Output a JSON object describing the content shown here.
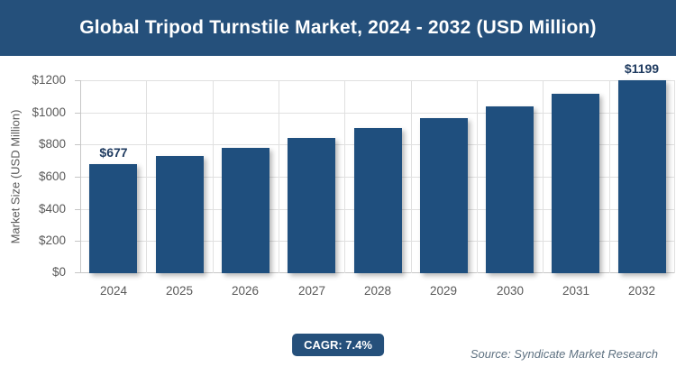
{
  "banner": {
    "title": "Global Tripod Turnstile Market, 2024 - 2032 (USD Million)"
  },
  "chart_data": {
    "type": "bar",
    "title": "Global Tripod Turnstile Market, 2024 - 2032 (USD Million)",
    "categories": [
      "2024",
      "2025",
      "2026",
      "2027",
      "2028",
      "2029",
      "2030",
      "2031",
      "2032"
    ],
    "values": [
      677,
      727,
      781,
      839,
      901,
      967,
      1039,
      1116,
      1199
    ],
    "bar_labels": [
      "$677",
      "",
      "",
      "",
      "",
      "",
      "",
      "",
      "$1199"
    ],
    "xlabel": "",
    "ylabel": "Market Size (USD Million)",
    "ylim": [
      0,
      1200
    ],
    "yticks": [
      0,
      200,
      400,
      600,
      800,
      1000,
      1200
    ],
    "ytick_labels": [
      "$0",
      "$200",
      "$400",
      "$600",
      "$800",
      "$1000",
      "$1200"
    ],
    "grid": true,
    "legend": false,
    "cagr_percent": 7.4
  },
  "footer": {
    "cagr_label": "CAGR: 7.4%",
    "source": "Source: Syndicate Market Research"
  },
  "colors": {
    "banner_bg": "#25507B",
    "badge_bg": "#25507B",
    "bar": "#1F4F7E",
    "value_label": "#1E3A5F",
    "axis_text": "#595959",
    "gridline": "#E0E0E0",
    "axis_line": "#C6C6C6",
    "source_text": "#5F7282"
  }
}
